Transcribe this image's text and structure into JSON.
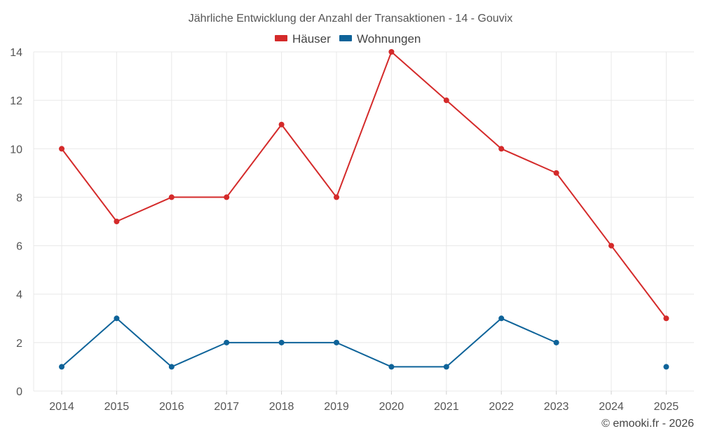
{
  "chart_data": {
    "type": "line",
    "title": "Jährliche Entwicklung der Anzahl der Transaktionen - 14 - Gouvix",
    "categories": [
      "2014",
      "2015",
      "2016",
      "2017",
      "2018",
      "2019",
      "2020",
      "2021",
      "2022",
      "2023",
      "2024",
      "2025"
    ],
    "yticks": [
      "0",
      "2",
      "4",
      "6",
      "8",
      "10",
      "12",
      "14"
    ],
    "ylim": [
      0,
      14
    ],
    "legend_position": "top-center",
    "grid": true,
    "series": [
      {
        "name": "Häuser",
        "color": "#d42a2a",
        "values": [
          10,
          7,
          8,
          8,
          11,
          8,
          14,
          12,
          10,
          9,
          6,
          3
        ]
      },
      {
        "name": "Wohnungen",
        "color": "#0e6399",
        "values": [
          1,
          3,
          1,
          2,
          2,
          2,
          1,
          1,
          3,
          2,
          null,
          1
        ]
      }
    ],
    "credit": "© emooki.fr - 2026"
  }
}
